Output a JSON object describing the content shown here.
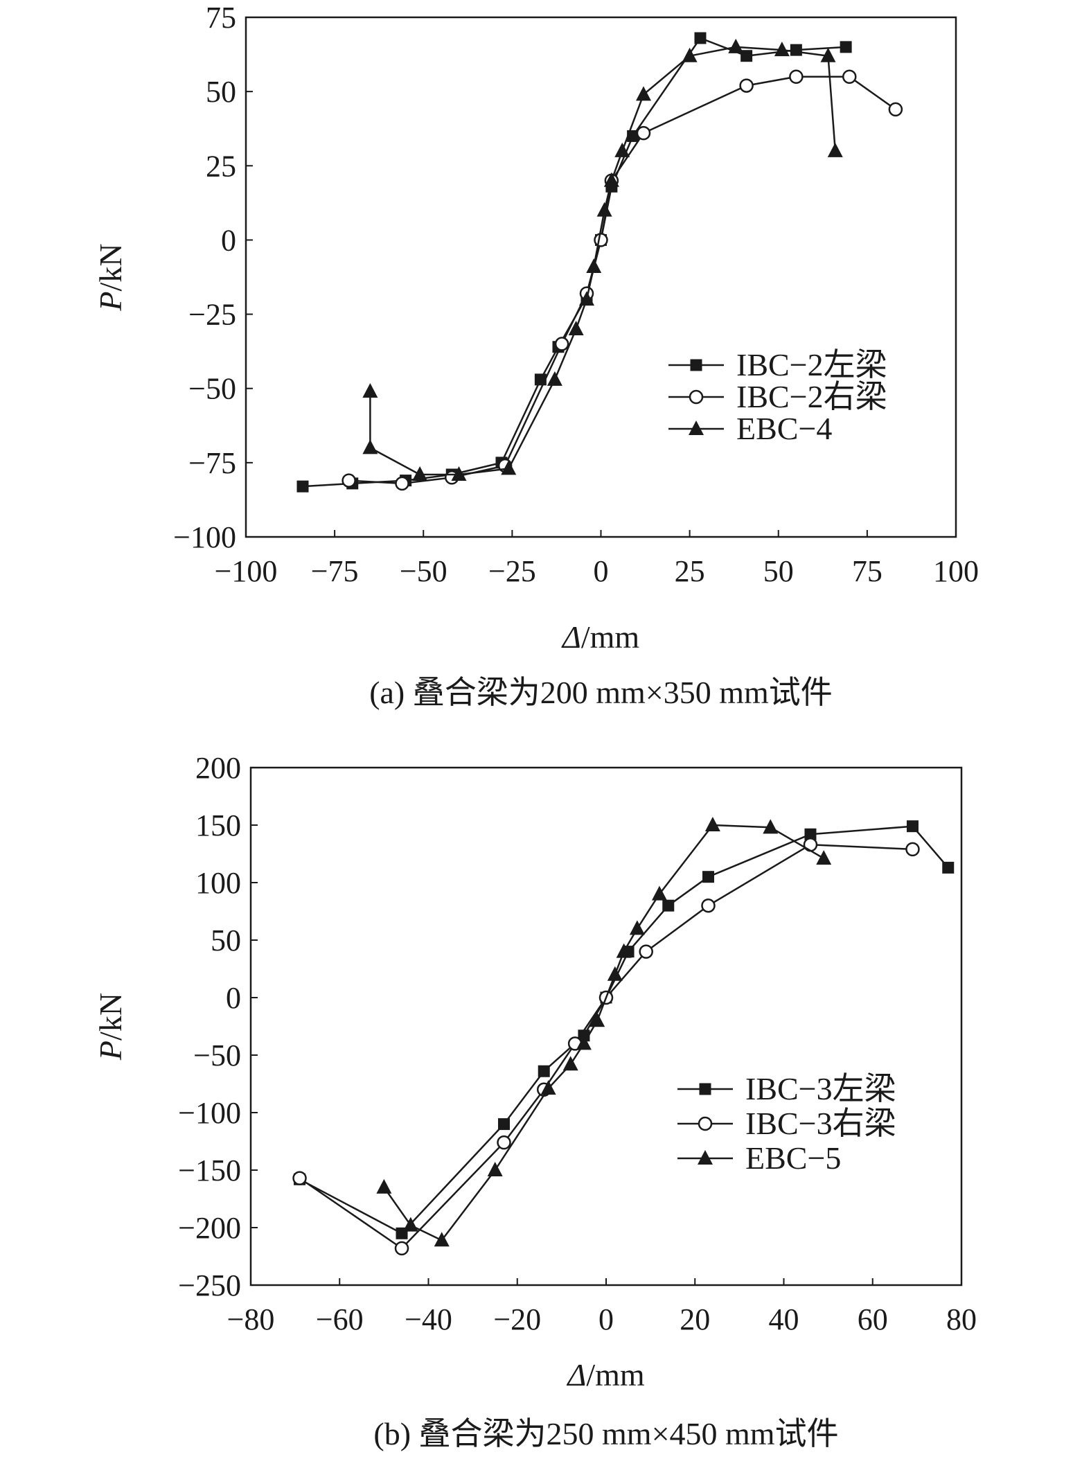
{
  "chart_data": [
    {
      "type": "line",
      "caption": "(a) 叠合梁为200 mm×350 mm试件",
      "xlabel": {
        "symbol": "Δ",
        "unit": "/mm"
      },
      "ylabel": {
        "symbol": "P",
        "unit": "/kN"
      },
      "xlim": [
        -100,
        100
      ],
      "ylim": [
        -100,
        75
      ],
      "x_ticks": [
        "−100",
        "−75",
        "−50",
        "−25",
        "0",
        "25",
        "50",
        "75",
        "100"
      ],
      "x_tick_values": [
        -100,
        -75,
        -50,
        -25,
        0,
        25,
        50,
        75,
        100
      ],
      "y_ticks": [
        "−100",
        "−75",
        "−50",
        "−25",
        "0",
        "25",
        "50",
        "75"
      ],
      "y_tick_values": [
        -100,
        -75,
        -50,
        -25,
        0,
        25,
        50,
        75
      ],
      "grid": false,
      "legend_position": "right-middle",
      "series": [
        {
          "name": "IBC−2左梁",
          "marker": "square-filled",
          "points": [
            [
              -84,
              -83
            ],
            [
              -70,
              -82
            ],
            [
              -55,
              -81
            ],
            [
              -42,
              -79
            ],
            [
              -28,
              -75
            ],
            [
              -17,
              -47
            ],
            [
              -12,
              -36
            ],
            [
              -4,
              -19
            ],
            [
              0,
              0
            ],
            [
              3,
              18
            ],
            [
              9,
              35
            ],
            [
              28,
              68
            ],
            [
              41,
              62
            ],
            [
              55,
              64
            ],
            [
              69,
              65
            ]
          ]
        },
        {
          "name": "IBC−2右梁",
          "marker": "circle-open",
          "points": [
            [
              -71,
              -81
            ],
            [
              -56,
              -82
            ],
            [
              -42,
              -80
            ],
            [
              -27,
              -76
            ],
            [
              -11,
              -35
            ],
            [
              -4,
              -18
            ],
            [
              0,
              0
            ],
            [
              3,
              20
            ],
            [
              12,
              36
            ],
            [
              41,
              52
            ],
            [
              55,
              55
            ],
            [
              70,
              55
            ],
            [
              83,
              44
            ]
          ]
        },
        {
          "name": "EBC−4",
          "marker": "triangle-filled",
          "points": [
            [
              -65,
              -51
            ],
            [
              -65,
              -70
            ],
            [
              -51,
              -79
            ],
            [
              -40,
              -79
            ],
            [
              -26,
              -77
            ],
            [
              -13,
              -47
            ],
            [
              -7,
              -30
            ],
            [
              -4,
              -20
            ],
            [
              -2,
              -9
            ],
            [
              1,
              10
            ],
            [
              3,
              20
            ],
            [
              6,
              30
            ],
            [
              12,
              49
            ],
            [
              25,
              62
            ],
            [
              38,
              65
            ],
            [
              51,
              64
            ],
            [
              64,
              62
            ],
            [
              66,
              30
            ]
          ]
        }
      ]
    },
    {
      "type": "line",
      "caption": "(b) 叠合梁为250 mm×450 mm试件",
      "xlabel": {
        "symbol": "Δ",
        "unit": "/mm"
      },
      "ylabel": {
        "symbol": "P",
        "unit": "/kN"
      },
      "xlim": [
        -80,
        80
      ],
      "ylim": [
        -250,
        200
      ],
      "x_ticks": [
        "−80",
        "−60",
        "−40",
        "−20",
        "0",
        "20",
        "40",
        "60",
        "80"
      ],
      "x_tick_values": [
        -80,
        -60,
        -40,
        -20,
        0,
        20,
        40,
        60,
        80
      ],
      "y_ticks": [
        "−250",
        "−200",
        "−150",
        "−100",
        "−50",
        "0",
        "50",
        "100",
        "150",
        "200"
      ],
      "y_tick_values": [
        -250,
        -200,
        -150,
        -100,
        -50,
        0,
        50,
        100,
        150,
        200
      ],
      "grid": false,
      "legend_position": "right-lower",
      "series": [
        {
          "name": "IBC−3左梁",
          "marker": "square-filled",
          "points": [
            [
              -69,
              -158
            ],
            [
              -46,
              -205
            ],
            [
              -23,
              -110
            ],
            [
              -14,
              -64
            ],
            [
              -5,
              -33
            ],
            [
              0,
              0
            ],
            [
              5,
              40
            ],
            [
              14,
              80
            ],
            [
              23,
              105
            ],
            [
              46,
              142
            ],
            [
              69,
              149
            ],
            [
              77,
              113
            ]
          ]
        },
        {
          "name": "IBC−3右梁",
          "marker": "circle-open",
          "points": [
            [
              -69,
              -157
            ],
            [
              -46,
              -218
            ],
            [
              -23,
              -126
            ],
            [
              -14,
              -80
            ],
            [
              -7,
              -40
            ],
            [
              0,
              0
            ],
            [
              9,
              40
            ],
            [
              23,
              80
            ],
            [
              46,
              133
            ],
            [
              69,
              129
            ]
          ]
        },
        {
          "name": "EBC−5",
          "marker": "triangle-filled",
          "points": [
            [
              -50,
              -165
            ],
            [
              -44,
              -198
            ],
            [
              -37,
              -211
            ],
            [
              -25,
              -150
            ],
            [
              -13,
              -79
            ],
            [
              -8,
              -58
            ],
            [
              -5,
              -40
            ],
            [
              -2,
              -20
            ],
            [
              2,
              20
            ],
            [
              4,
              40
            ],
            [
              7,
              60
            ],
            [
              12,
              90
            ],
            [
              24,
              150
            ],
            [
              37,
              148
            ],
            [
              49,
              121
            ]
          ]
        }
      ]
    }
  ]
}
